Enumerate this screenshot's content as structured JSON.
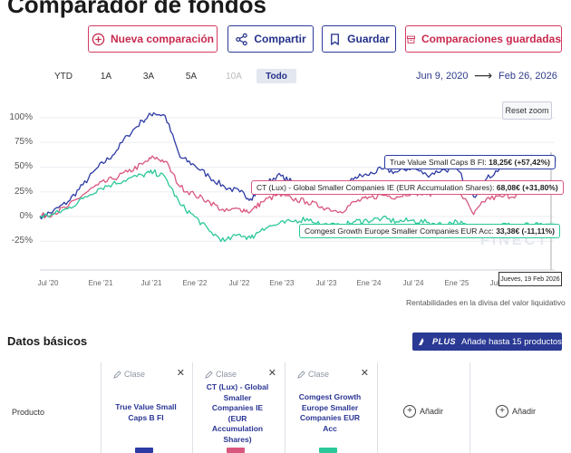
{
  "header": {
    "title": "Comparador de fondos"
  },
  "actions": {
    "new": "Nueva comparación",
    "share": "Compartir",
    "save": "Guardar",
    "saved": "Comparaciones guardadas"
  },
  "ranges": [
    "YTD",
    "1A",
    "3A",
    "5A",
    "10A",
    "Todo"
  ],
  "range_selected": "Todo",
  "range_disabled": "10A",
  "date_from": "Jun 9, 2020",
  "date_to": "Feb 26, 2026",
  "date_arrow": "⟶",
  "reset_zoom": "Reset zoom",
  "colors": {
    "blue": "#2d3ba4",
    "red": "#d9577e",
    "green": "#2bc89a",
    "accent": "#2a3994"
  },
  "chart_data": {
    "type": "line",
    "ylim": [
      -0.45,
      1.1
    ],
    "y_ticks": [
      "100%",
      "75%",
      "50%",
      "25%",
      "0%",
      "-25%"
    ],
    "x_ticks": [
      "Jul '20",
      "Ene '21",
      "Jul '21",
      "Ene '22",
      "Jul '22",
      "Ene '23",
      "Jul '23",
      "Ene '24",
      "Jul '24",
      "Ene '25",
      "Jul '25"
    ],
    "x": [
      "2020-06-09",
      "2020-08-01",
      "2020-10-01",
      "2020-12-01",
      "2021-02-01",
      "2021-04-01",
      "2021-06-01",
      "2021-08-01",
      "2021-09-15",
      "2021-11-01",
      "2022-01-01",
      "2022-03-01",
      "2022-05-01",
      "2022-07-01",
      "2022-09-01",
      "2022-10-15",
      "2022-12-01",
      "2023-02-01",
      "2023-04-01",
      "2023-06-01",
      "2023-08-01",
      "2023-10-15",
      "2023-12-15",
      "2024-02-01",
      "2024-04-01",
      "2024-06-01",
      "2024-08-01",
      "2024-10-01",
      "2024-12-01",
      "2025-02-01",
      "2025-04-10",
      "2025-06-01",
      "2025-08-01",
      "2025-10-01",
      "2025-12-01",
      "2026-02-19"
    ],
    "series": [
      {
        "values": [
          0.0,
          0.05,
          0.15,
          0.32,
          0.5,
          0.62,
          0.82,
          0.97,
          1.05,
          1.02,
          0.6,
          0.52,
          0.4,
          0.3,
          0.25,
          0.18,
          0.3,
          0.42,
          0.35,
          0.32,
          0.28,
          0.25,
          0.4,
          0.42,
          0.48,
          0.45,
          0.5,
          0.42,
          0.47,
          0.48,
          0.2,
          0.38,
          0.5,
          0.55,
          0.62,
          0.5742
        ]
      },
      {
        "values": [
          0.0,
          0.03,
          0.1,
          0.22,
          0.32,
          0.38,
          0.45,
          0.53,
          0.6,
          0.56,
          0.3,
          0.22,
          0.15,
          0.05,
          0.08,
          0.05,
          0.15,
          0.22,
          0.18,
          0.15,
          0.1,
          0.05,
          0.15,
          0.18,
          0.22,
          0.2,
          0.25,
          0.22,
          0.28,
          0.3,
          0.02,
          0.18,
          0.2,
          0.22,
          0.28,
          0.318
        ]
      },
      {
        "values": [
          0.0,
          0.02,
          0.08,
          0.18,
          0.28,
          0.33,
          0.38,
          0.42,
          0.45,
          0.4,
          0.12,
          0.0,
          -0.15,
          -0.25,
          -0.18,
          -0.22,
          -0.12,
          -0.08,
          -0.05,
          -0.02,
          -0.08,
          -0.1,
          -0.05,
          -0.04,
          -0.02,
          -0.05,
          -0.04,
          -0.06,
          -0.08,
          -0.05,
          -0.14,
          -0.1,
          -0.08,
          -0.1,
          -0.08,
          -0.1111
        ]
      }
    ]
  },
  "tooltips": {
    "blue": {
      "label": "True Value Small Caps B FI: ",
      "value": "18,25€ (+57,42%)"
    },
    "red": {
      "label": "CT (Lux) - Global Smaller Companies IE (EUR Accumulation Shares): ",
      "value": "68,08€ (+31,80%)"
    },
    "green": {
      "label": "Comgest Growth Europe Smaller Companies EUR Acc: ",
      "value": "33,38€ (-11,11%)"
    }
  },
  "watermark": "FINECT",
  "date_tooltip": "Jueves, 19 Feb 2026",
  "caption": "Rentabilidades en la divisa del valor liquidativo",
  "basic_data": {
    "title": "Datos básicos",
    "plus_badge": "PLUS",
    "plus_text": "Añade hasta 15 productos",
    "row_label": "Producto",
    "class_label": "Clase",
    "add_label": "Añadir",
    "funds": [
      {
        "name_lines": [
          "True Value Small",
          "Caps B FI"
        ],
        "color": "#2d3ba4"
      },
      {
        "name_lines": [
          "CT (Lux) - Global",
          "Smaller",
          "Companies IE",
          "(EUR",
          "Accumulation",
          "Shares)"
        ],
        "color": "#d9577e"
      },
      {
        "name_lines": [
          "Comgest Growth",
          "Europe Smaller",
          "Companies EUR",
          "Acc"
        ],
        "color": "#2bc89a"
      }
    ]
  }
}
